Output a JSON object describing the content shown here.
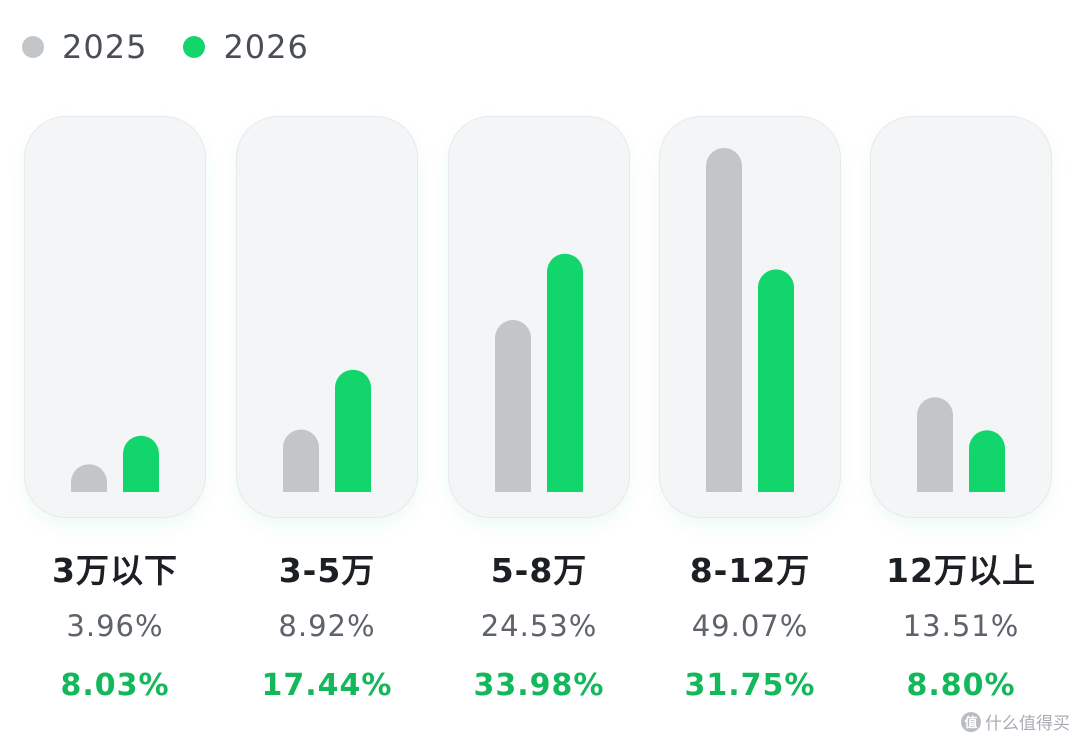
{
  "legend": [
    {
      "label": "2025",
      "color": "#c3c6c9"
    },
    {
      "label": "2026",
      "color": "#12d66b"
    }
  ],
  "chart_data": {
    "type": "bar",
    "categories": [
      "3万以下",
      "3-5万",
      "5-8万",
      "8-12万",
      "12万以上"
    ],
    "series": [
      {
        "name": "2025",
        "values": [
          3.96,
          8.92,
          24.53,
          49.07,
          13.51
        ],
        "color": "#c3c6c9"
      },
      {
        "name": "2026",
        "values": [
          8.03,
          17.44,
          33.98,
          31.75,
          8.8
        ],
        "color": "#12d66b"
      }
    ],
    "value_labels_2025": [
      "3.96%",
      "8.92%",
      "24.53%",
      "49.07%",
      "13.51%"
    ],
    "value_labels_2026": [
      "8.03%",
      "17.44%",
      "33.98%",
      "31.75%",
      "8.80%"
    ],
    "ylim": [
      0,
      49.07
    ],
    "grid": false,
    "legend_position": "top-left"
  },
  "watermark": {
    "text": "什么值得买",
    "icon": "值"
  }
}
